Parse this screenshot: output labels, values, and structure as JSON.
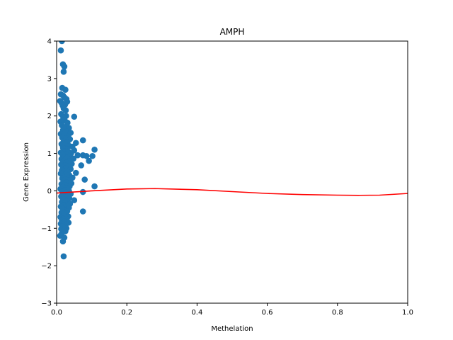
{
  "chart_data": {
    "type": "scatter",
    "title": "AMPH",
    "xlabel": "Methelation",
    "ylabel": "Gene Expression",
    "xlim": [
      0.0,
      1.0
    ],
    "ylim": [
      -3,
      4
    ],
    "xticks": [
      "0.0",
      "0.2",
      "0.4",
      "0.6",
      "0.8",
      "1.0"
    ],
    "yticks": [
      "−3",
      "−2",
      "−1",
      "0",
      "1",
      "2",
      "3",
      "4"
    ],
    "grid": false,
    "colors": {
      "points": "#1f77b4",
      "fit": "#ff0000",
      "axes": "#000000"
    },
    "series": [
      {
        "name": "samples",
        "kind": "scatter",
        "points": [
          [
            0.015,
            4.0
          ],
          [
            0.012,
            3.75
          ],
          [
            0.018,
            3.38
          ],
          [
            0.022,
            3.32
          ],
          [
            0.02,
            3.18
          ],
          [
            0.012,
            2.58
          ],
          [
            0.016,
            2.75
          ],
          [
            0.025,
            2.7
          ],
          [
            0.018,
            2.55
          ],
          [
            0.022,
            2.5
          ],
          [
            0.028,
            2.45
          ],
          [
            0.01,
            2.4
          ],
          [
            0.03,
            2.38
          ],
          [
            0.014,
            2.35
          ],
          [
            0.024,
            2.3
          ],
          [
            0.017,
            2.28
          ],
          [
            0.02,
            2.2
          ],
          [
            0.026,
            2.15
          ],
          [
            0.013,
            2.05
          ],
          [
            0.027,
            2.0
          ],
          [
            0.05,
            1.98
          ],
          [
            0.019,
            1.95
          ],
          [
            0.023,
            1.88
          ],
          [
            0.011,
            1.85
          ],
          [
            0.031,
            1.82
          ],
          [
            0.015,
            1.75
          ],
          [
            0.024,
            1.7
          ],
          [
            0.035,
            1.68
          ],
          [
            0.018,
            1.62
          ],
          [
            0.029,
            1.58
          ],
          [
            0.04,
            1.55
          ],
          [
            0.012,
            1.52
          ],
          [
            0.022,
            1.5
          ],
          [
            0.033,
            1.45
          ],
          [
            0.016,
            1.42
          ],
          [
            0.027,
            1.4
          ],
          [
            0.038,
            1.38
          ],
          [
            0.075,
            1.35
          ],
          [
            0.02,
            1.32
          ],
          [
            0.031,
            1.3
          ],
          [
            0.055,
            1.28
          ],
          [
            0.014,
            1.25
          ],
          [
            0.025,
            1.22
          ],
          [
            0.036,
            1.2
          ],
          [
            0.045,
            1.18
          ],
          [
            0.018,
            1.15
          ],
          [
            0.029,
            1.12
          ],
          [
            0.108,
            1.1
          ],
          [
            0.05,
            1.08
          ],
          [
            0.022,
            1.06
          ],
          [
            0.033,
            1.05
          ],
          [
            0.012,
            1.02
          ],
          [
            0.041,
            1.0
          ],
          [
            0.026,
            0.98
          ],
          [
            0.017,
            0.96
          ],
          [
            0.06,
            0.95
          ],
          [
            0.075,
            0.95
          ],
          [
            0.085,
            0.93
          ],
          [
            0.102,
            0.93
          ],
          [
            0.038,
            0.92
          ],
          [
            0.021,
            0.9
          ],
          [
            0.03,
            0.88
          ],
          [
            0.048,
            0.86
          ],
          [
            0.014,
            0.85
          ],
          [
            0.025,
            0.82
          ],
          [
            0.035,
            0.8
          ],
          [
            0.092,
            0.8
          ],
          [
            0.019,
            0.78
          ],
          [
            0.028,
            0.75
          ],
          [
            0.043,
            0.72
          ],
          [
            0.013,
            0.7
          ],
          [
            0.024,
            0.68
          ],
          [
            0.07,
            0.68
          ],
          [
            0.033,
            0.65
          ],
          [
            0.018,
            0.62
          ],
          [
            0.027,
            0.6
          ],
          [
            0.04,
            0.58
          ],
          [
            0.015,
            0.55
          ],
          [
            0.022,
            0.52
          ],
          [
            0.032,
            0.5
          ],
          [
            0.055,
            0.48
          ],
          [
            0.012,
            0.46
          ],
          [
            0.026,
            0.44
          ],
          [
            0.036,
            0.42
          ],
          [
            0.019,
            0.4
          ],
          [
            0.03,
            0.38
          ],
          [
            0.045,
            0.35
          ],
          [
            0.016,
            0.33
          ],
          [
            0.024,
            0.3
          ],
          [
            0.08,
            0.3
          ],
          [
            0.034,
            0.28
          ],
          [
            0.02,
            0.25
          ],
          [
            0.028,
            0.22
          ],
          [
            0.042,
            0.2
          ],
          [
            0.014,
            0.18
          ],
          [
            0.025,
            0.15
          ],
          [
            0.037,
            0.12
          ],
          [
            0.108,
            0.12
          ],
          [
            0.018,
            0.1
          ],
          [
            0.029,
            0.08
          ],
          [
            0.011,
            0.05
          ],
          [
            0.023,
            0.02
          ],
          [
            0.035,
            0.0
          ],
          [
            0.016,
            -0.02
          ],
          [
            0.075,
            -0.03
          ],
          [
            0.027,
            -0.05
          ],
          [
            0.04,
            -0.08
          ],
          [
            0.02,
            -0.1
          ],
          [
            0.031,
            -0.12
          ],
          [
            0.013,
            -0.15
          ],
          [
            0.024,
            -0.18
          ],
          [
            0.036,
            -0.2
          ],
          [
            0.05,
            -0.25
          ],
          [
            0.018,
            -0.22
          ],
          [
            0.029,
            -0.28
          ],
          [
            0.015,
            -0.3
          ],
          [
            0.025,
            -0.33
          ],
          [
            0.038,
            -0.35
          ],
          [
            0.021,
            -0.38
          ],
          [
            0.032,
            -0.4
          ],
          [
            0.012,
            -0.42
          ],
          [
            0.027,
            -0.45
          ],
          [
            0.035,
            -0.45
          ],
          [
            0.017,
            -0.48
          ],
          [
            0.023,
            -0.52
          ],
          [
            0.075,
            -0.55
          ],
          [
            0.03,
            -0.55
          ],
          [
            0.014,
            -0.58
          ],
          [
            0.026,
            -0.62
          ],
          [
            0.02,
            -0.65
          ],
          [
            0.033,
            -0.68
          ],
          [
            0.011,
            -0.7
          ],
          [
            0.024,
            -0.72
          ],
          [
            0.018,
            -0.75
          ],
          [
            0.029,
            -0.78
          ],
          [
            0.015,
            -0.8
          ],
          [
            0.022,
            -0.82
          ],
          [
            0.034,
            -0.85
          ],
          [
            0.012,
            -0.88
          ],
          [
            0.026,
            -0.9
          ],
          [
            0.019,
            -0.92
          ],
          [
            0.016,
            -0.95
          ],
          [
            0.023,
            -0.98
          ],
          [
            0.028,
            -1.0
          ],
          [
            0.013,
            -1.02
          ],
          [
            0.021,
            -1.05
          ],
          [
            0.025,
            -1.08
          ],
          [
            0.017,
            -1.1
          ],
          [
            0.014,
            -1.15
          ],
          [
            0.01,
            -1.2
          ],
          [
            0.022,
            -1.25
          ],
          [
            0.018,
            -1.35
          ],
          [
            0.02,
            -1.75
          ]
        ]
      },
      {
        "name": "fit",
        "kind": "line",
        "points": [
          [
            0.0,
            -0.06
          ],
          [
            0.1,
            0.0
          ],
          [
            0.2,
            0.05
          ],
          [
            0.28,
            0.06
          ],
          [
            0.4,
            0.03
          ],
          [
            0.5,
            -0.02
          ],
          [
            0.6,
            -0.07
          ],
          [
            0.7,
            -0.1
          ],
          [
            0.8,
            -0.115
          ],
          [
            0.86,
            -0.12
          ],
          [
            0.92,
            -0.115
          ],
          [
            1.0,
            -0.07
          ]
        ]
      }
    ]
  }
}
